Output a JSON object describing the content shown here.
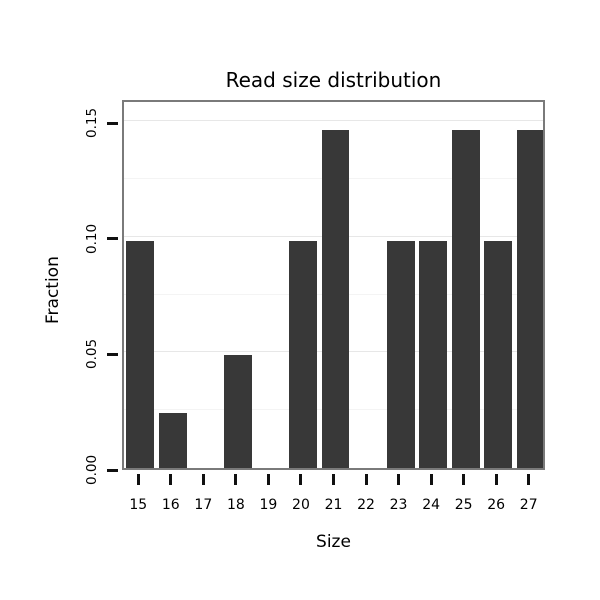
{
  "chart_data": {
    "type": "bar",
    "title": "Read size distribution",
    "xlabel": "Size",
    "ylabel": "Fraction",
    "categories": [
      "15",
      "16",
      "17",
      "18",
      "19",
      "20",
      "21",
      "22",
      "23",
      "24",
      "25",
      "26",
      "27"
    ],
    "values": [
      0.098,
      0.024,
      0,
      0.049,
      0,
      0.098,
      0.146,
      0,
      0.098,
      0.098,
      0.146,
      0.098,
      0.146
    ],
    "ylim": [
      0,
      0.16
    ],
    "yticks": [
      {
        "value": 0.0,
        "label": "0.00"
      },
      {
        "value": 0.05,
        "label": "0.05"
      },
      {
        "value": 0.1,
        "label": "0.10"
      },
      {
        "value": 0.15,
        "label": "0.15"
      }
    ],
    "minor_grid_values": [
      0.025,
      0.075,
      0.125
    ],
    "major_grid_values": [
      0.05,
      0.1,
      0.15
    ],
    "grid": "horizontal",
    "legend": "none",
    "bar_color": "#383838",
    "panel_border_color": "#7a7a7a",
    "major_gridline_color": "#e7e7e7",
    "minor_gridline_color": "#f4f4f4",
    "tick_color": "#111111",
    "background_color": "#ffffff"
  }
}
